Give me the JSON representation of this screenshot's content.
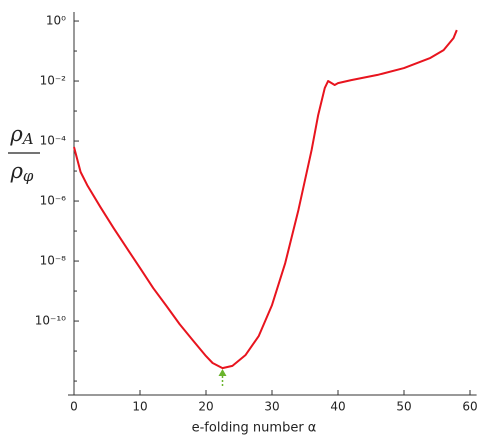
{
  "chart_data": {
    "type": "line",
    "xlabel": "e-folding number α",
    "ylabel": {
      "symbol": "ρ",
      "numerator_sub": "A",
      "denominator_sub": "φ"
    },
    "ylog": true,
    "xlim": [
      0,
      61
    ],
    "xticks": [
      0,
      10,
      20,
      30,
      40,
      50,
      60
    ],
    "ylim": [
      4e-13,
      2
    ],
    "yticks": [
      {
        "value": 1,
        "label": "10⁰"
      },
      {
        "value": 0.01,
        "label": "10⁻²"
      },
      {
        "value": 0.0001,
        "label": "10⁻⁴"
      },
      {
        "value": 1e-06,
        "label": "10⁻⁶"
      },
      {
        "value": 1e-08,
        "label": "10⁻⁸"
      },
      {
        "value": 1e-10,
        "label": "10⁻¹⁰"
      }
    ],
    "yminorticks": [
      0.1,
      0.001,
      1e-05,
      1e-07,
      1e-09,
      1e-11,
      1e-12
    ],
    "series": [
      {
        "color": "#e8141e",
        "x": [
          0,
          1,
          2,
          4,
          6,
          8,
          10,
          12,
          14,
          16,
          18,
          20,
          21,
          22.5,
          24,
          26,
          28,
          30,
          32,
          34,
          36,
          37,
          38,
          38.5,
          39.5,
          40,
          42,
          46,
          50,
          54,
          56,
          57.5,
          58
        ],
        "values": [
          6.3e-05,
          9.3e-06,
          3.4e-06,
          6.3e-07,
          1.26e-07,
          2.7e-08,
          5.9e-09,
          1.26e-09,
          3.2e-10,
          7.9e-11,
          2.3e-11,
          6.8e-12,
          4e-12,
          2.7e-12,
          3.2e-12,
          7.4e-12,
          3.2e-11,
          3.4e-10,
          8.5e-09,
          5e-07,
          5e-05,
          0.00074,
          0.0059,
          0.01,
          0.0074,
          0.0085,
          0.0107,
          0.016,
          0.027,
          0.059,
          0.107,
          0.27,
          0.5
        ]
      }
    ]
  }
}
